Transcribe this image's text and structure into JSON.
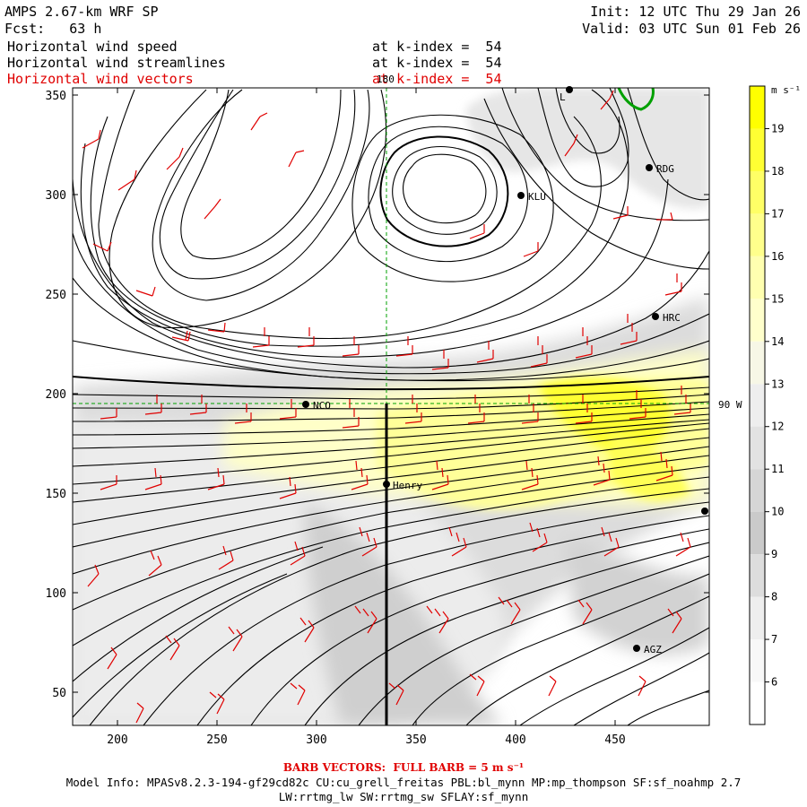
{
  "header": {
    "model": "AMPS 2.67-km WRF SP",
    "forecast": "Fcst:   63 h",
    "init": "Init: 12 UTC Thu 29 Jan 26",
    "valid": "Valid: 03 UTC Sun 01 Feb 26"
  },
  "fields": [
    {
      "label": "Horizontal wind speed",
      "level": "at k-index =  54",
      "color": "#000000"
    },
    {
      "label": "Horizontal wind streamlines",
      "level": "at k-index =  54",
      "color": "#000000"
    },
    {
      "label": "Horizontal wind vectors",
      "level": "at k-index =  54",
      "color": "#e00000"
    }
  ],
  "map": {
    "x_axis_ticks": [
      "200",
      "250",
      "300",
      "350",
      "400",
      "450"
    ],
    "y_axis_ticks": [
      "350",
      "300",
      "250",
      "200",
      "150",
      "100",
      "50"
    ],
    "meridian_label": "180",
    "parallel_label": "90 W",
    "stations": [
      {
        "name": "NCO"
      },
      {
        "name": "Henry"
      },
      {
        "name": "KLU"
      },
      {
        "name": "RDG"
      },
      {
        "name": "HRC"
      },
      {
        "name": "AGZ"
      },
      {
        "name": "L"
      },
      {
        "name": ""
      }
    ]
  },
  "colorbar": {
    "units": "m s⁻¹",
    "labels": [
      "19",
      "18",
      "17",
      "16",
      "15",
      "14",
      "13",
      "12",
      "11",
      "10",
      "9",
      "8",
      "7",
      "6"
    ],
    "colors": [
      "#ffff00",
      "#ffff33",
      "#ffff66",
      "#ffff8c",
      "#ffffb0",
      "#ffffcc",
      "#f7f7e6",
      "#eeeeee",
      "#e2e2e2",
      "#d6d6d6",
      "#cacaca",
      "#dddddd",
      "#eeeeee",
      "#f8f8f8",
      "#ffffff"
    ]
  },
  "footer": {
    "barb_note": "BARB VECTORS:  FULL BARB = 5 m s⁻¹",
    "model_info": "Model Info: MPASv8.2.3-194-gf29cd82c CU:cu_grell_freitas PBL:bl_mynn MP:mp_thompson SF:sf_noahmp 2.7",
    "physics": "LW:rrtmg_lw SW:rrtmg_sw SFLAY:sf_mynn"
  }
}
